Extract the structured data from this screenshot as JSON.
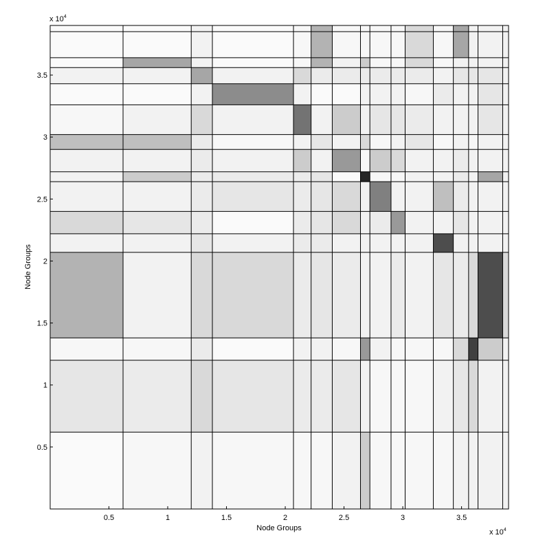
{
  "chart_data": {
    "type": "heatmap",
    "xlabel": "Node Groups",
    "ylabel": "Node Groups",
    "x_multiplier": "x 10",
    "x_exponent": "4",
    "y_multiplier": "x 10",
    "y_exponent": "4",
    "xlim": [
      0,
      39000
    ],
    "ylim": [
      0,
      39000
    ],
    "x_ticks": [
      {
        "value": 5000,
        "label": "0.5"
      },
      {
        "value": 10000,
        "label": "1"
      },
      {
        "value": 15000,
        "label": "1.5"
      },
      {
        "value": 20000,
        "label": "2"
      },
      {
        "value": 25000,
        "label": "2.5"
      },
      {
        "value": 30000,
        "label": "3"
      },
      {
        "value": 35000,
        "label": "3.5"
      }
    ],
    "y_ticks": [
      {
        "value": 5000,
        "label": "0.5"
      },
      {
        "value": 10000,
        "label": "1"
      },
      {
        "value": 15000,
        "label": "1.5"
      },
      {
        "value": 20000,
        "label": "2"
      },
      {
        "value": 25000,
        "label": "2.5"
      },
      {
        "value": 30000,
        "label": "3"
      },
      {
        "value": 35000,
        "label": "3.5"
      }
    ],
    "group_boundaries": [
      0,
      6200,
      12000,
      13800,
      20700,
      22200,
      24000,
      26400,
      27200,
      29000,
      30200,
      32600,
      34300,
      35600,
      36400,
      38500,
      39000
    ],
    "density": [
      [
        0.02,
        0.03,
        0.05,
        0.03,
        0.03,
        0.03,
        0.05,
        0.2,
        0.03,
        0.03,
        0.03,
        0.03,
        0.05,
        0.05,
        0.05,
        0.05
      ],
      [
        0.1,
        0.08,
        0.15,
        0.1,
        0.08,
        0.08,
        0.1,
        0.05,
        0.03,
        0.03,
        0.03,
        0.05,
        0.1,
        0.15,
        0.05,
        0.05
      ],
      [
        0.03,
        0.03,
        0.08,
        0.02,
        0.05,
        0.05,
        0.03,
        0.4,
        0.05,
        0.03,
        0.03,
        0.03,
        0.15,
        0.75,
        0.2,
        0.05
      ],
      [
        0.3,
        0.05,
        0.15,
        0.15,
        0.08,
        0.1,
        0.08,
        0.05,
        0.05,
        0.08,
        0.05,
        0.1,
        0.08,
        0.15,
        0.7,
        0.15
      ],
      [
        0.05,
        0.05,
        0.1,
        0.05,
        0.08,
        0.08,
        0.05,
        0.05,
        0.05,
        0.05,
        0.05,
        0.7,
        0.05,
        0.05,
        0.05,
        0.05
      ],
      [
        0.15,
        0.1,
        0.08,
        0.02,
        0.08,
        0.1,
        0.15,
        0.05,
        0.08,
        0.4,
        0.05,
        0.05,
        0.1,
        0.05,
        0.05,
        0.05
      ],
      [
        0.05,
        0.05,
        0.08,
        0.1,
        0.08,
        0.1,
        0.15,
        0.05,
        0.5,
        0.05,
        0.05,
        0.25,
        0.08,
        0.05,
        0.05,
        0.05
      ],
      [
        0.05,
        0.2,
        0.08,
        0.08,
        0.08,
        0.1,
        0.02,
        0.85,
        0.03,
        0.03,
        0.05,
        0.05,
        0.08,
        0.05,
        0.35,
        0.05
      ],
      [
        0.05,
        0.05,
        0.08,
        0.05,
        0.2,
        0.05,
        0.4,
        0.03,
        0.2,
        0.15,
        0.05,
        0.05,
        0.08,
        0.05,
        0.05,
        0.05
      ],
      [
        0.25,
        0.25,
        0.08,
        0.03,
        0.05,
        0.1,
        0.05,
        0.15,
        0.03,
        0.05,
        0.1,
        0.03,
        0.05,
        0.03,
        0.05,
        0.05
      ],
      [
        0.03,
        0.05,
        0.15,
        0.05,
        0.55,
        0.05,
        0.2,
        0.05,
        0.1,
        0.1,
        0.08,
        0.05,
        0.05,
        0.05,
        0.1,
        0.05
      ],
      [
        0.02,
        0.02,
        0.05,
        0.45,
        0.05,
        0.02,
        0.02,
        0.05,
        0.05,
        0.05,
        0.03,
        0.08,
        0.05,
        0.05,
        0.1,
        0.05
      ],
      [
        0.05,
        0.05,
        0.35,
        0.05,
        0.15,
        0.08,
        0.08,
        0.08,
        0.08,
        0.08,
        0.08,
        0.05,
        0.1,
        0.1,
        0.1,
        0.05
      ],
      [
        0.02,
        0.35,
        0.05,
        0.02,
        0.03,
        0.3,
        0.05,
        0.2,
        0.03,
        0.03,
        0.15,
        0.03,
        0.05,
        0.05,
        0.05,
        0.05
      ],
      [
        0.02,
        0.02,
        0.05,
        0.02,
        0.03,
        0.3,
        0.03,
        0.03,
        0.03,
        0.03,
        0.15,
        0.03,
        0.35,
        0.05,
        0.05,
        0.05
      ],
      [
        0.02,
        0.02,
        0.05,
        0.02,
        0.03,
        0.3,
        0.03,
        0.03,
        0.03,
        0.03,
        0.15,
        0.03,
        0.35,
        0.05,
        0.05,
        0.05
      ]
    ]
  }
}
